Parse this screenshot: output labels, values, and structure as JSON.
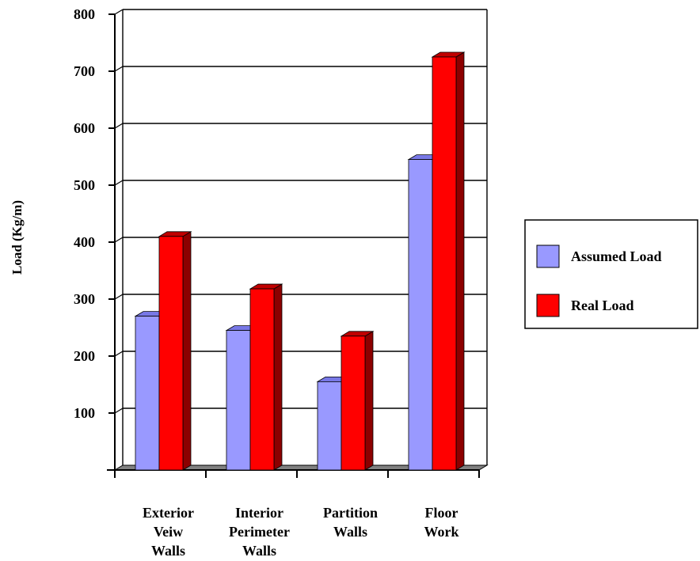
{
  "chart_data": {
    "type": "bar",
    "title": "",
    "xlabel": "",
    "ylabel": "Load (Kg/m)",
    "ylim": [
      0,
      800
    ],
    "yticks": [
      100,
      200,
      300,
      400,
      500,
      600,
      700,
      800
    ],
    "categories": [
      [
        "Exterior",
        "Veiw",
        "Walls"
      ],
      [
        "Interior",
        "Perimeter",
        "Walls"
      ],
      [
        "Partition",
        "Walls"
      ],
      [
        "Floor",
        "Work"
      ]
    ],
    "series": [
      {
        "name": "Assumed Load",
        "values": [
          270,
          245,
          155,
          545
        ]
      },
      {
        "name": "Real Load",
        "values": [
          410,
          318,
          235,
          725
        ]
      }
    ],
    "grid": true,
    "legend_position": "right",
    "style": "3d",
    "colors": {
      "Assumed Load": {
        "front": "#9999ff",
        "side": "#5a5ac8",
        "top": "#7878e6"
      },
      "Real Load": {
        "front": "#ff0000",
        "side": "#8c0000",
        "top": "#c00000"
      },
      "floor": "#808080"
    }
  }
}
